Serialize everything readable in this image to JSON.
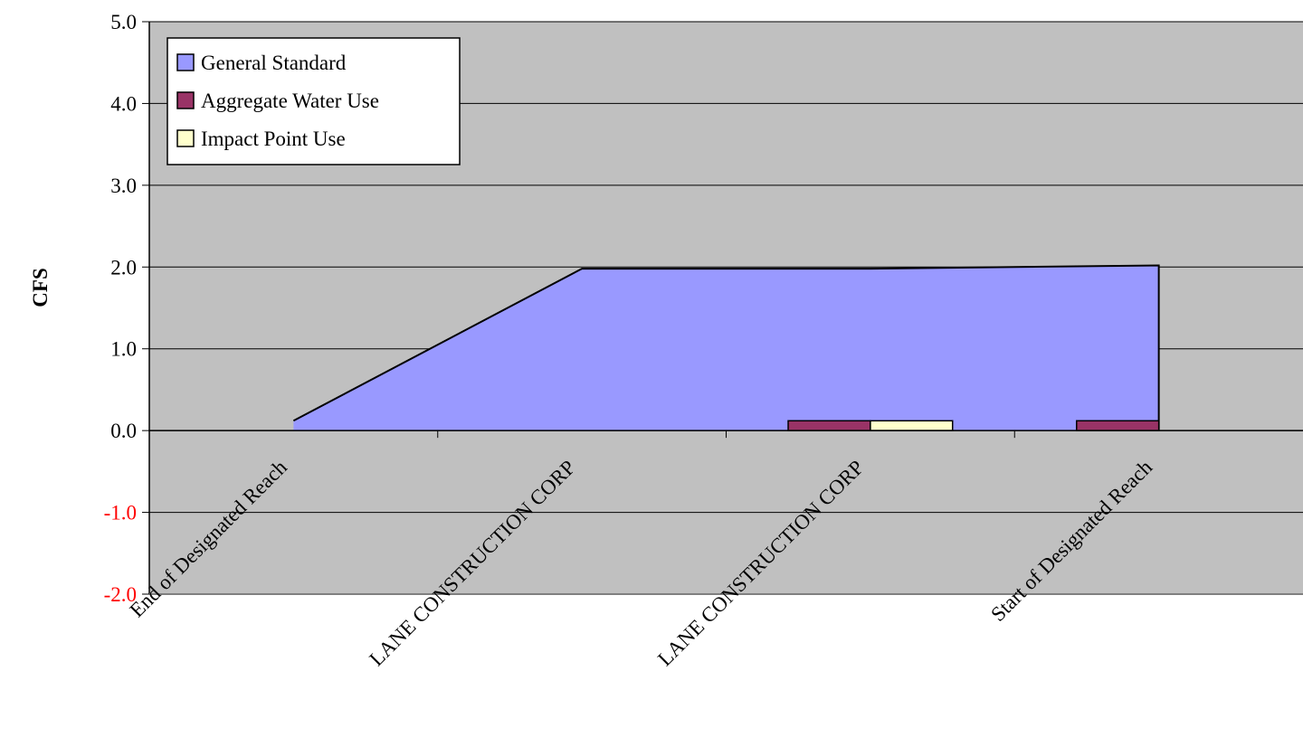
{
  "chart_data": {
    "type": "area",
    "title": "",
    "xlabel": "",
    "ylabel": "CFS",
    "ylim": [
      -2.0,
      5.0
    ],
    "yticks": [
      5.0,
      4.0,
      3.0,
      2.0,
      1.0,
      0.0,
      -1.0,
      -2.0
    ],
    "ytick_labels": [
      "5.0",
      "4.0",
      "3.0",
      "2.0",
      "1.0",
      "0.0",
      "-1.0",
      "-2.0"
    ],
    "categories": [
      "End of Designated Reach",
      "LANE CONSTRUCTION CORP",
      "LANE CONSTRUCTION CORP",
      "Start of Designated Reach"
    ],
    "grid": true,
    "legend_position": "top-left",
    "series": [
      {
        "name": "General Standard",
        "kind": "area",
        "color": "#9999ff",
        "values": [
          0.12,
          1.98,
          1.98,
          2.02
        ]
      },
      {
        "name": "Aggregate Water Use",
        "kind": "bar",
        "color": "#993366",
        "values": [
          0.0,
          0.0,
          0.12,
          0.12
        ]
      },
      {
        "name": "Impact Point Use",
        "kind": "bar",
        "color": "#ffffcc",
        "values": [
          0.0,
          0.0,
          0.12,
          0.0
        ]
      }
    ],
    "colors": {
      "plot_background": "#c0c0c0",
      "gridline": "#000000",
      "negative_tick_label": "#ff0000",
      "tick_label": "#000000"
    }
  }
}
